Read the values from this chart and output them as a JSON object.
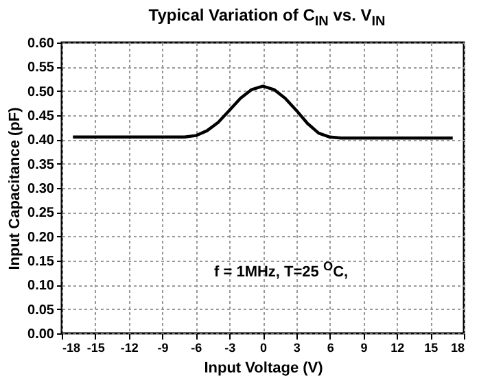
{
  "chart_data": {
    "type": "line",
    "title": "Typical Variation of C$_{IN}$ vs. V$_{IN}$",
    "xlabel": "Input Voltage (V)",
    "ylabel": "Input Capacitance (pF)",
    "annotations": [
      "f = 1MHz, T=25 $^{O}$C,"
    ],
    "x": [
      -17,
      -8,
      -7,
      -6,
      -5,
      -4,
      -3,
      -2,
      -1,
      0,
      1,
      2,
      3,
      4,
      5,
      6,
      7,
      17
    ],
    "series": [
      {
        "color": "#000000",
        "values": [
          0.405,
          0.405,
          0.405,
          0.408,
          0.418,
          0.435,
          0.46,
          0.485,
          0.503,
          0.51,
          0.503,
          0.485,
          0.46,
          0.433,
          0.413,
          0.405,
          0.403,
          0.403
        ]
      }
    ],
    "xlim": [
      -18,
      18
    ],
    "xticks": [
      -18,
      -15,
      -12,
      -9,
      -6,
      -3,
      0,
      3,
      6,
      9,
      12,
      15,
      18
    ],
    "ylim": [
      0,
      0.6
    ],
    "yticks": [
      {
        "value": 0,
        "label": "0.00"
      },
      0.05,
      {
        "value": 0.1,
        "label": "0.10"
      },
      0.15,
      {
        "value": 0.2,
        "label": "0.20"
      },
      0.25,
      {
        "value": 0.3,
        "label": "0.30"
      },
      0.35,
      {
        "value": 0.4,
        "label": "0.40"
      },
      0.45,
      {
        "value": 0.5,
        "label": "0.50"
      },
      0.55,
      {
        "value": 0.6,
        "label": "0.60"
      }
    ],
    "grid": true
  }
}
